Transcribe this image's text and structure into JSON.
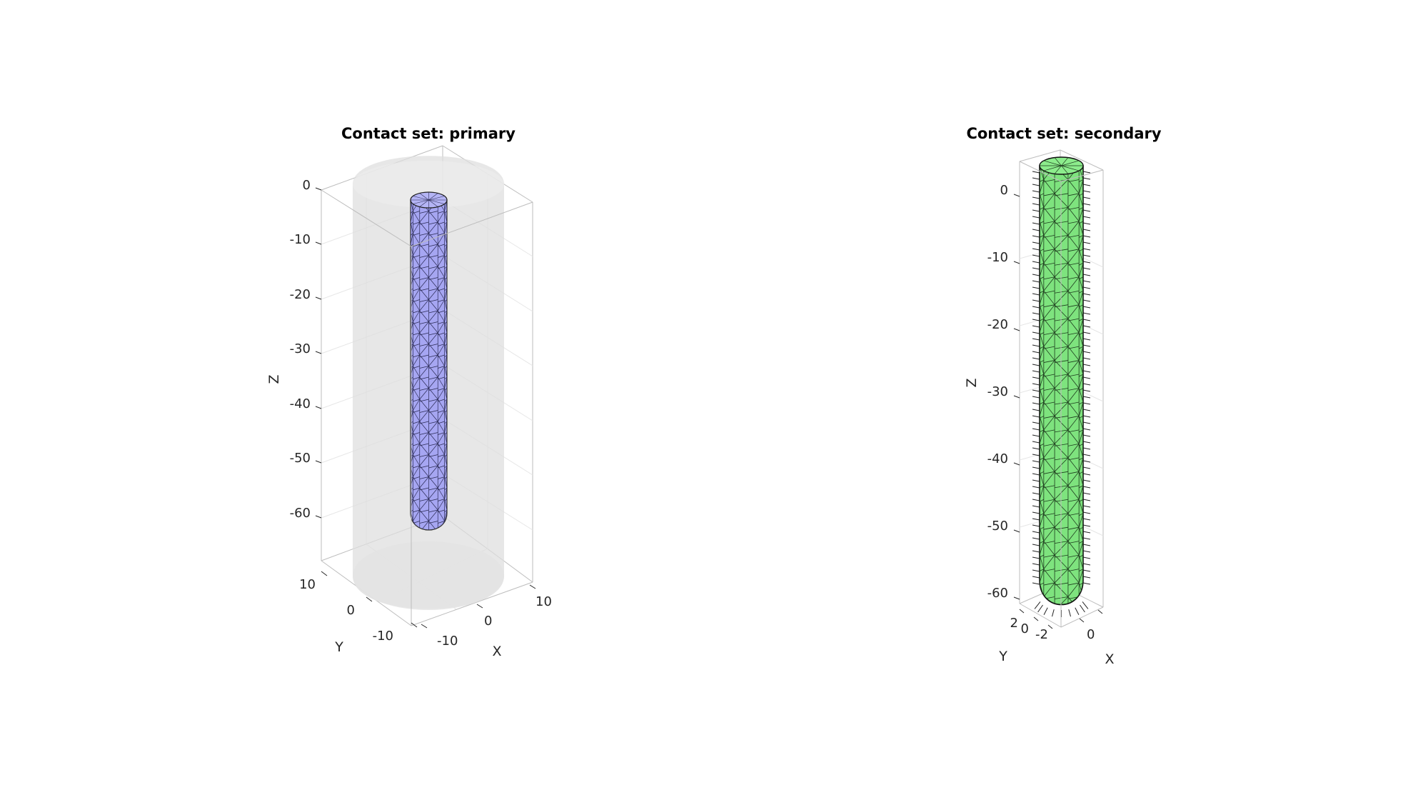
{
  "panels": [
    {
      "title": "Contact set: primary",
      "axes": {
        "xlabel": "X",
        "ylabel": "Y",
        "zlabel": "Z",
        "xticks": [
          "-10",
          "0",
          "10"
        ],
        "yticks": [
          "-10",
          "0",
          "10"
        ],
        "zticks": [
          "0",
          "-10",
          "-20",
          "-30",
          "-40",
          "-50",
          "-60"
        ]
      },
      "colors": {
        "outer": "#dcdcdc",
        "inner": "#a3a3f0",
        "edge": "#222222"
      }
    },
    {
      "title": "Contact set: secondary",
      "axes": {
        "xlabel": "X",
        "ylabel": "Y",
        "zlabel": "Z",
        "xticks": [
          "0"
        ],
        "yticks": [
          "-2",
          "0",
          "2"
        ],
        "zticks": [
          "0",
          "-10",
          "-20",
          "-30",
          "-40",
          "-50",
          "-60"
        ]
      },
      "colors": {
        "surface": "#7ee37e",
        "edge": "#1a1a1a"
      }
    }
  ]
}
